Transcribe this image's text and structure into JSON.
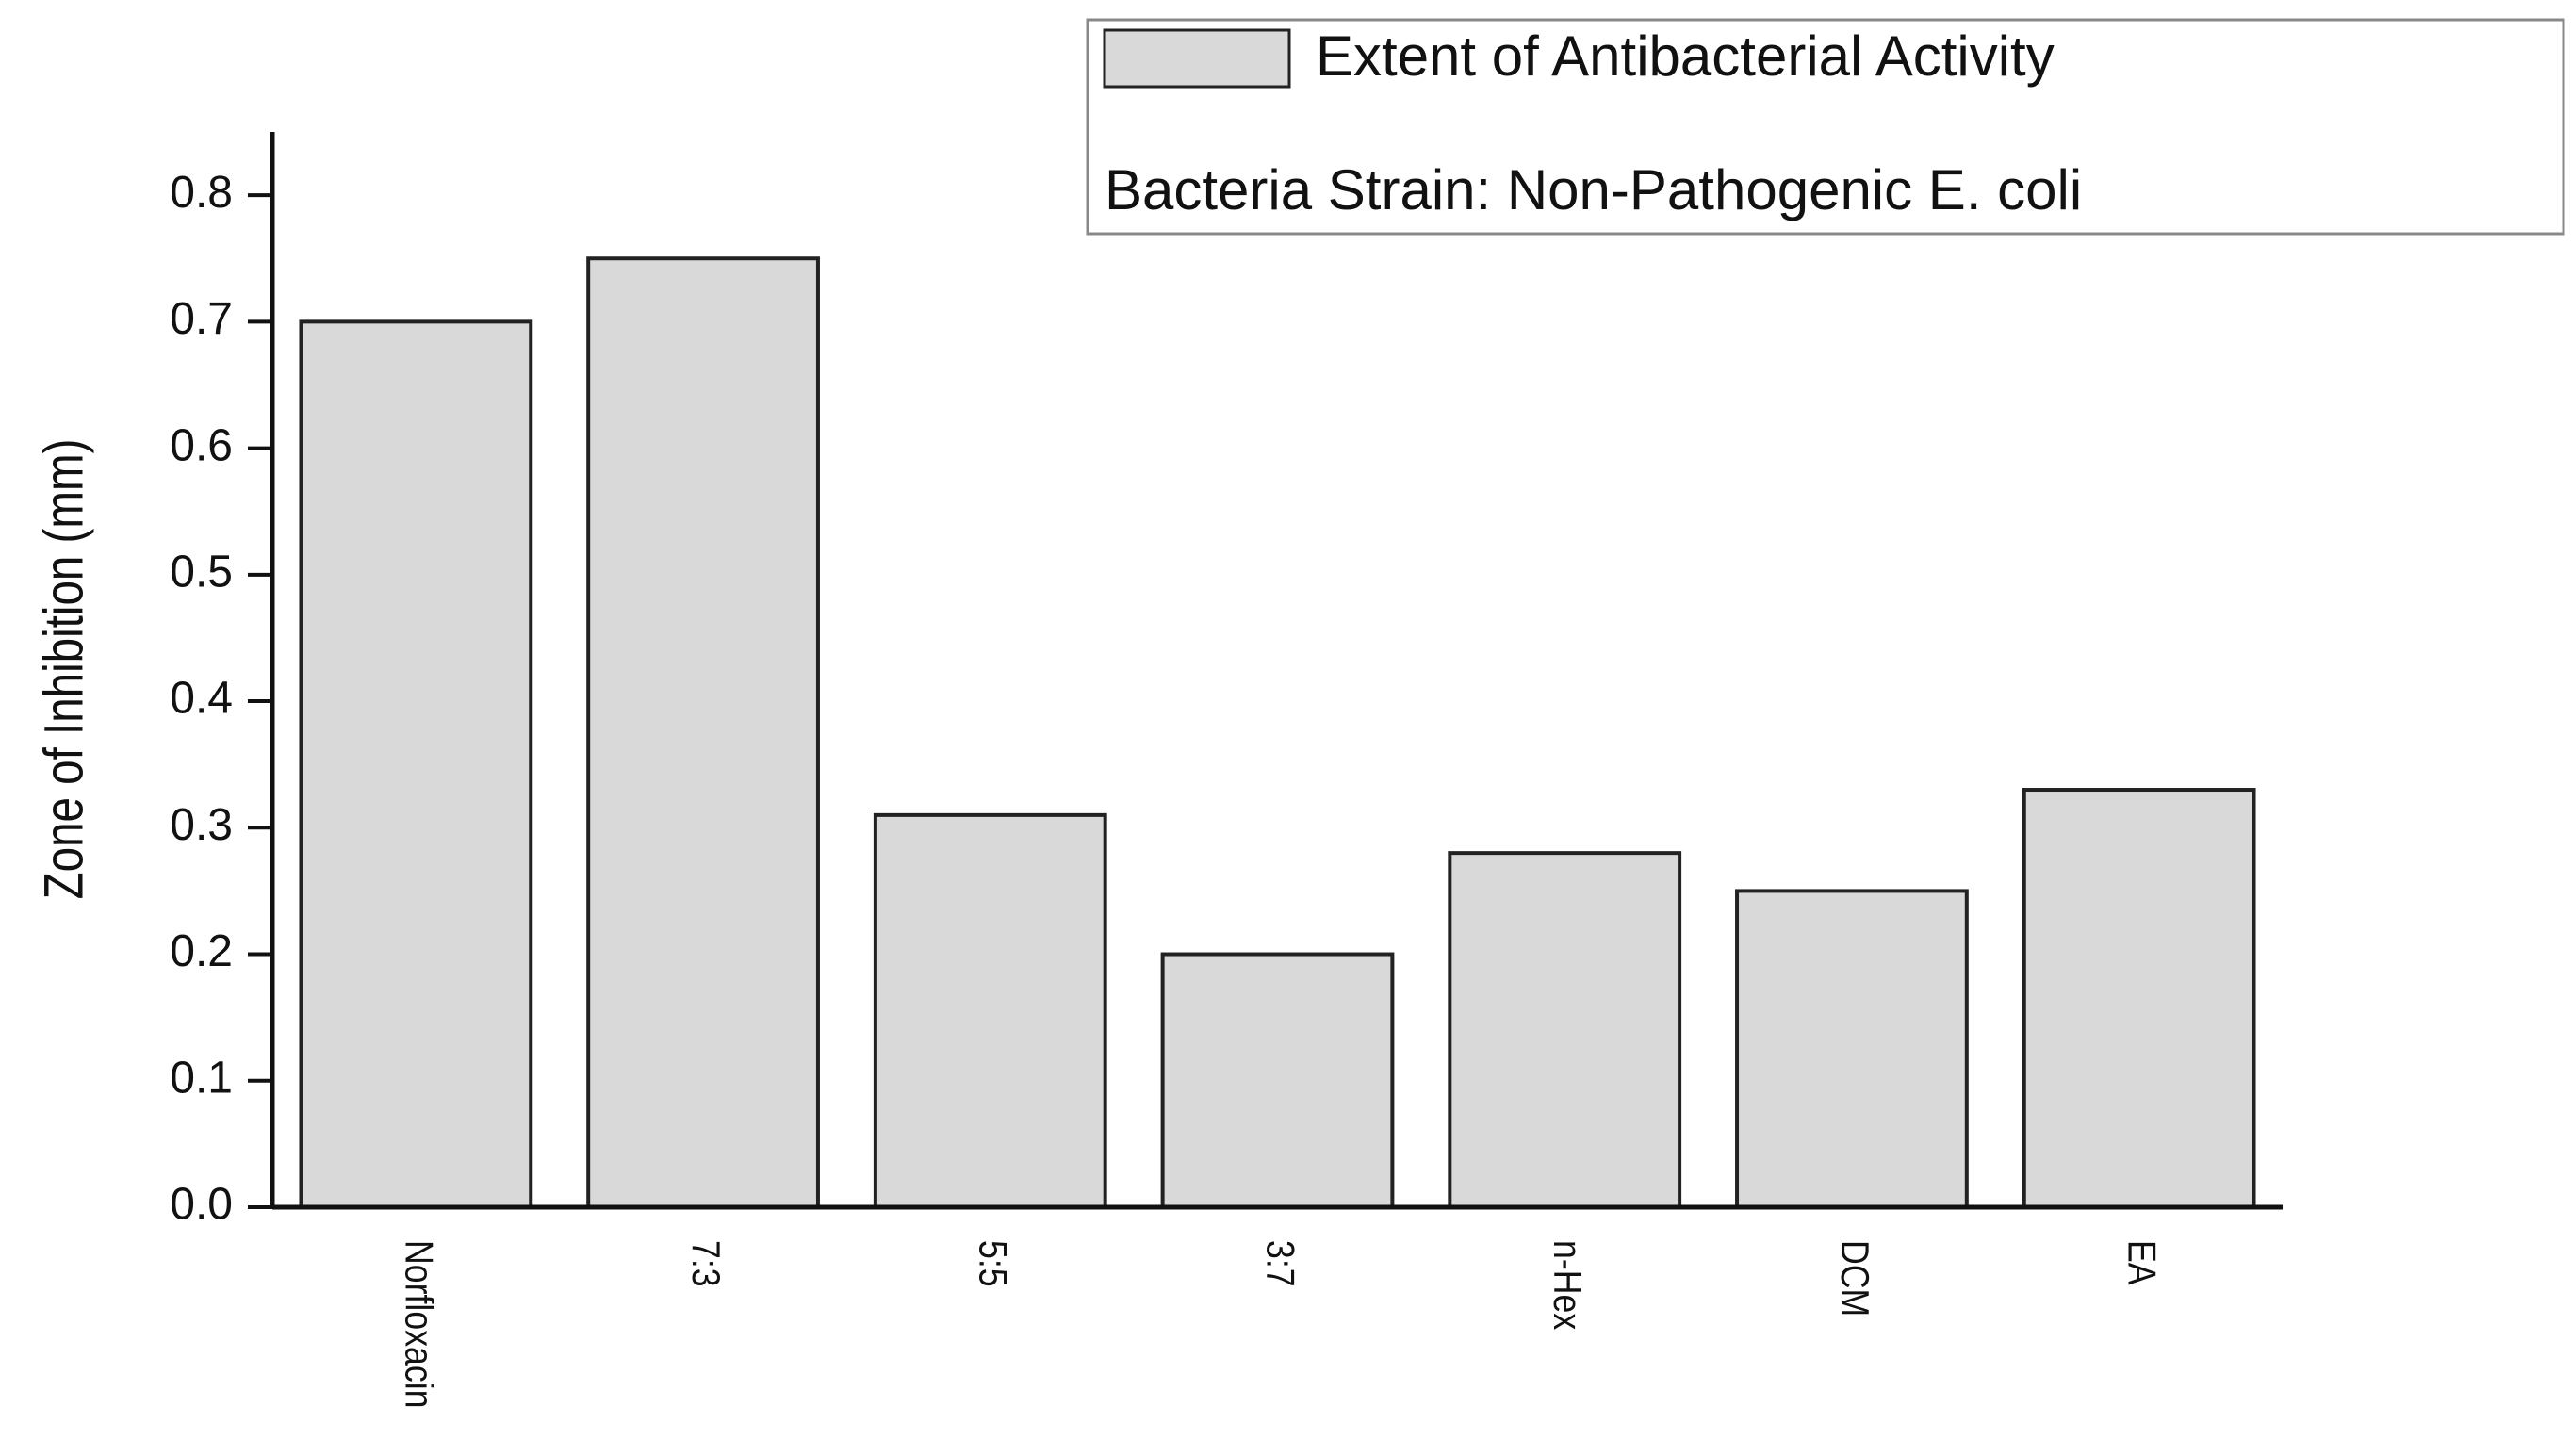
{
  "chart_data": {
    "type": "bar",
    "y_label": "Zone of Inhibition (mm)",
    "annotation": "Bacteria Strain: Non-Pathogenic E. coli",
    "categories": [
      "Norfloxacin",
      "7:3",
      "5:5",
      "3:7",
      "n-Hex",
      "DCM",
      "EA"
    ],
    "series": [
      {
        "name": "Extent of Antibacterial Activity",
        "color": "#d9d9d9",
        "values": [
          0.7,
          0.75,
          0.31,
          0.2,
          0.28,
          0.25,
          0.33
        ]
      }
    ],
    "ylim": [
      0,
      0.85
    ],
    "yticks": [
      {
        "value": 0,
        "label": "0.0"
      },
      0.1,
      0.2,
      0.3,
      0.4,
      0.5,
      0.6,
      0.7,
      0.8
    ],
    "grid": false
  }
}
